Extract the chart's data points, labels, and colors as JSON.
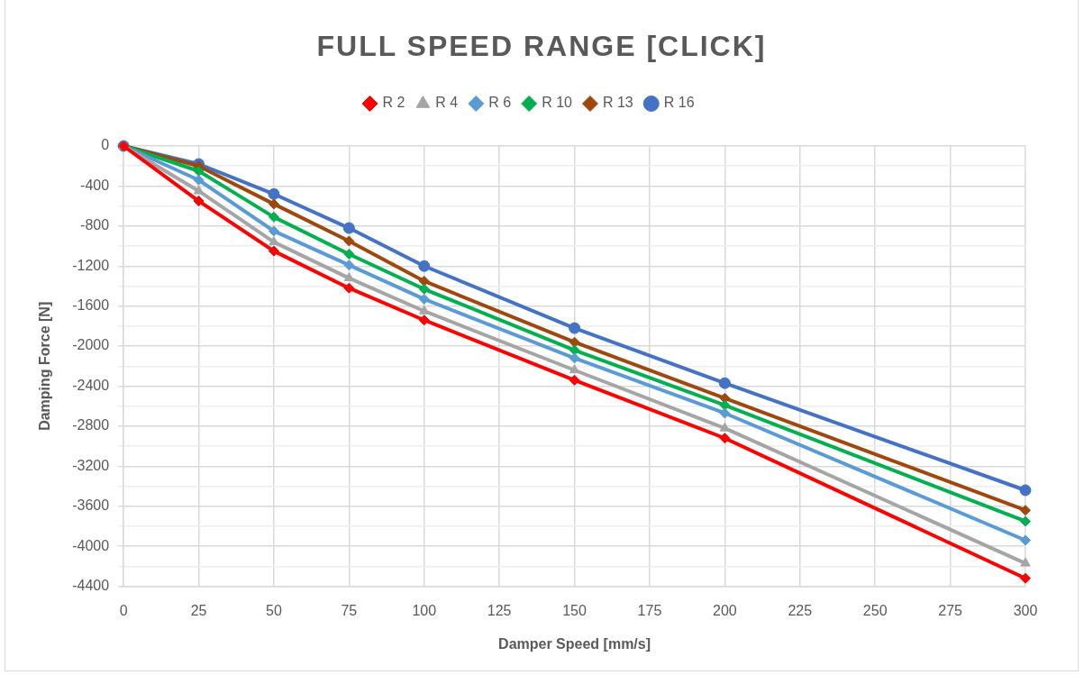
{
  "chart_data": {
    "type": "line",
    "title": "FULL SPEED RANGE [CLICK]",
    "xlabel": "Damper Speed [mm/s]",
    "ylabel": "Damping Force [N]",
    "x": [
      0,
      25,
      50,
      75,
      100,
      150,
      200,
      300
    ],
    "series": [
      {
        "name": "R 2",
        "color": "#ff0000",
        "marker": "diamond",
        "values": [
          0,
          -550,
          -1050,
          -1420,
          -1740,
          -2340,
          -2920,
          -4320
        ]
      },
      {
        "name": "R 4",
        "color": "#a5a5a5",
        "marker": "triangle",
        "values": [
          0,
          -450,
          -960,
          -1320,
          -1650,
          -2240,
          -2820,
          -4170
        ]
      },
      {
        "name": "R 6",
        "color": "#5b9bd5",
        "marker": "diamond",
        "values": [
          0,
          -340,
          -850,
          -1190,
          -1530,
          -2120,
          -2670,
          -3940
        ]
      },
      {
        "name": "R 10",
        "color": "#00b050",
        "marker": "diamond",
        "values": [
          0,
          -250,
          -710,
          -1080,
          -1430,
          -2040,
          -2590,
          -3750
        ]
      },
      {
        "name": "R 13",
        "color": "#9e480e",
        "marker": "diamond",
        "values": [
          0,
          -200,
          -580,
          -950,
          -1350,
          -1960,
          -2520,
          -3640
        ]
      },
      {
        "name": "R 16",
        "color": "#4472c4",
        "marker": "circle",
        "values": [
          0,
          -180,
          -480,
          -820,
          -1200,
          -1820,
          -2370,
          -3440
        ]
      }
    ],
    "xlim": [
      0,
      300
    ],
    "xticks": [
      0,
      25,
      50,
      75,
      100,
      125,
      150,
      175,
      200,
      225,
      250,
      275,
      300
    ],
    "ylim": [
      -4400,
      0
    ],
    "yticks": [
      0,
      {
        "value": -200,
        "label": null
      },
      -400,
      {
        "value": -600,
        "label": null
      },
      -800,
      {
        "value": -1000,
        "label": null
      },
      -1200,
      {
        "value": -1400,
        "label": null
      },
      -1600,
      {
        "value": -1800,
        "label": null
      },
      -2000,
      {
        "value": -2200,
        "label": null
      },
      -2400,
      {
        "value": -2600,
        "label": null
      },
      -2800,
      {
        "value": -3000,
        "label": null
      },
      -3200,
      {
        "value": -3400,
        "label": null
      },
      -3600,
      {
        "value": -3800,
        "label": null
      },
      -4000,
      {
        "value": -4200,
        "label": null
      },
      -4400
    ],
    "grid": true,
    "legend": "top",
    "line_style": "solid"
  }
}
